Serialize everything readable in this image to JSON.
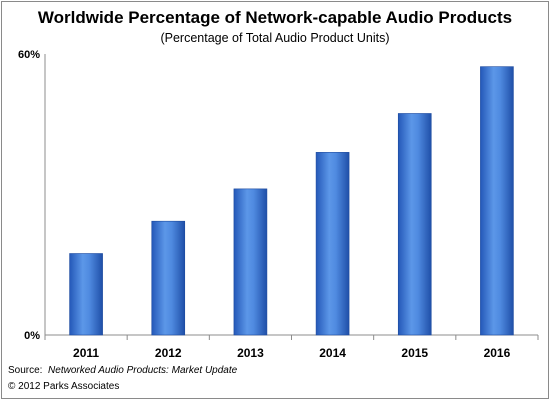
{
  "chart_data": {
    "type": "bar",
    "title": "Worldwide Percentage of Network-capable Audio Products",
    "subtitle": "(Percentage of Total Audio Product Units)",
    "categories": [
      "2011",
      "2012",
      "2013",
      "2014",
      "2015",
      "2016"
    ],
    "values": [
      17.4,
      24.3,
      31.2,
      39.0,
      47.3,
      57.3
    ],
    "ylim": [
      0,
      60
    ],
    "yticks": [
      "0%",
      "60%"
    ],
    "xlabel": "",
    "ylabel": "",
    "grid": false,
    "bar_color": "#3a7bd5"
  },
  "footer": {
    "source_prefix": "Source:",
    "source_title": "Networked Audio Products: Market Update",
    "copyright": "© 2012 Parks Associates"
  }
}
